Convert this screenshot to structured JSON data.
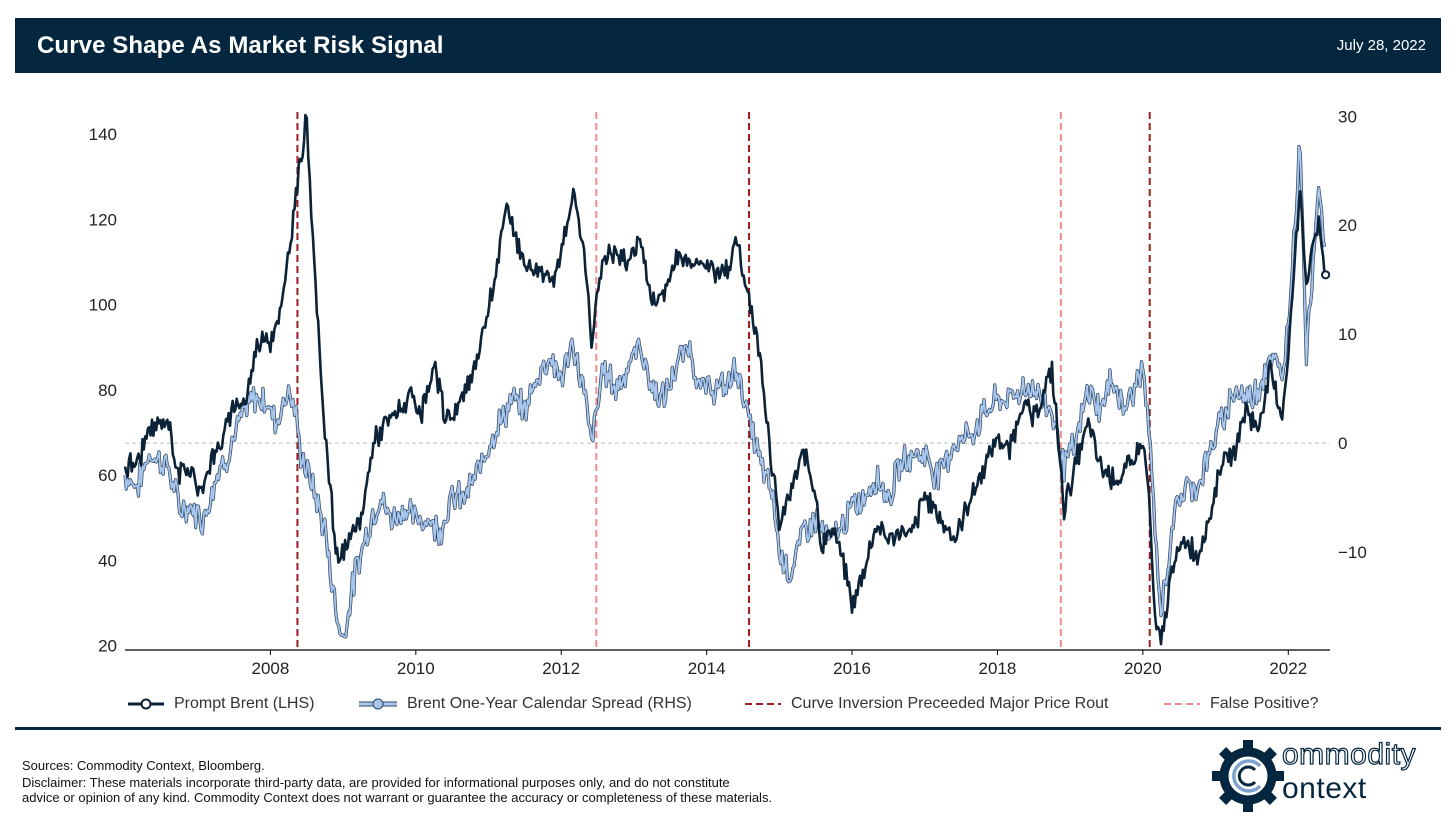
{
  "header": {
    "title": "Curve Shape As Market Risk Signal",
    "date": "July 28, 2022"
  },
  "colors": {
    "header_bg": "#04273f",
    "brent": "#0c2237",
    "spread_fill": "#a9c6ec",
    "spread_edge": "#2b4461",
    "inversion_line": "#a01c1c",
    "false_positive_line": "#f08c8c",
    "zero_line": "#bdbdbd"
  },
  "chart_data": {
    "type": "line",
    "x_range": [
      "2006-01-01",
      "2022-07-28"
    ],
    "x_ticks": [
      "2008",
      "2010",
      "2012",
      "2014",
      "2016",
      "2018",
      "2020",
      "2022"
    ],
    "y_left": {
      "range": [
        19,
        148
      ],
      "ticks": [
        "20",
        "40",
        "60",
        "80",
        "100",
        "120",
        "140"
      ]
    },
    "y_right": {
      "range": [
        -19,
        31.5
      ],
      "ticks": [
        "−10",
        "0",
        "10",
        "20",
        "30"
      ]
    },
    "zero_reference_line_rhs": 0,
    "series": [
      {
        "name": "Prompt Brent (LHS)",
        "axis": "left",
        "points": [
          [
            "2006-01",
            62
          ],
          [
            "2006-03",
            63
          ],
          [
            "2006-05",
            70
          ],
          [
            "2006-08",
            73
          ],
          [
            "2006-10",
            60
          ],
          [
            "2006-12",
            62
          ],
          [
            "2007-01",
            55
          ],
          [
            "2007-03",
            63
          ],
          [
            "2007-05",
            68
          ],
          [
            "2007-07",
            76
          ],
          [
            "2007-09",
            78
          ],
          [
            "2007-11",
            92
          ],
          [
            "2008-01",
            92
          ],
          [
            "2008-03",
            100
          ],
          [
            "2008-05",
            123
          ],
          [
            "2008-07",
            145
          ],
          [
            "2008-08",
            114
          ],
          [
            "2008-10",
            70
          ],
          [
            "2008-12",
            40
          ],
          [
            "2009-02",
            44
          ],
          [
            "2009-04",
            50
          ],
          [
            "2009-06",
            68
          ],
          [
            "2009-08",
            72
          ],
          [
            "2009-10",
            75
          ],
          [
            "2009-12",
            78
          ],
          [
            "2010-02",
            74
          ],
          [
            "2010-04",
            85
          ],
          [
            "2010-06",
            73
          ],
          [
            "2010-08",
            76
          ],
          [
            "2010-10",
            82
          ],
          [
            "2010-12",
            93
          ],
          [
            "2011-02",
            105
          ],
          [
            "2011-04",
            124
          ],
          [
            "2011-06",
            113
          ],
          [
            "2011-08",
            108
          ],
          [
            "2011-10",
            108
          ],
          [
            "2011-12",
            107
          ],
          [
            "2012-02",
            118
          ],
          [
            "2012-03",
            126
          ],
          [
            "2012-05",
            110
          ],
          [
            "2012-06",
            92
          ],
          [
            "2012-08",
            112
          ],
          [
            "2012-10",
            112
          ],
          [
            "2012-12",
            110
          ],
          [
            "2013-02",
            116
          ],
          [
            "2013-04",
            100
          ],
          [
            "2013-06",
            103
          ],
          [
            "2013-08",
            111
          ],
          [
            "2013-10",
            110
          ],
          [
            "2013-12",
            111
          ],
          [
            "2014-02",
            108
          ],
          [
            "2014-04",
            108
          ],
          [
            "2014-06",
            114
          ],
          [
            "2014-08",
            102
          ],
          [
            "2014-10",
            86
          ],
          [
            "2014-12",
            60
          ],
          [
            "2015-01",
            48
          ],
          [
            "2015-03",
            56
          ],
          [
            "2015-05",
            66
          ],
          [
            "2015-07",
            55
          ],
          [
            "2015-08",
            44
          ],
          [
            "2015-10",
            48
          ],
          [
            "2015-12",
            37
          ],
          [
            "2016-01",
            29
          ],
          [
            "2016-03",
            38
          ],
          [
            "2016-05",
            48
          ],
          [
            "2016-07",
            45
          ],
          [
            "2016-09",
            47
          ],
          [
            "2016-11",
            46
          ],
          [
            "2017-01",
            55
          ],
          [
            "2017-03",
            51
          ],
          [
            "2017-06",
            45
          ],
          [
            "2017-09",
            56
          ],
          [
            "2017-11",
            63
          ],
          [
            "2018-01",
            69
          ],
          [
            "2018-03",
            66
          ],
          [
            "2018-05",
            77
          ],
          [
            "2018-07",
            73
          ],
          [
            "2018-10",
            85
          ],
          [
            "2018-12",
            52
          ],
          [
            "2019-02",
            63
          ],
          [
            "2019-04",
            72
          ],
          [
            "2019-06",
            62
          ],
          [
            "2019-08",
            59
          ],
          [
            "2019-10",
            60
          ],
          [
            "2020-01",
            68
          ],
          [
            "2020-02",
            55
          ],
          [
            "2020-03",
            26
          ],
          [
            "2020-04",
            20
          ],
          [
            "2020-06",
            40
          ],
          [
            "2020-08",
            45
          ],
          [
            "2020-10",
            41
          ],
          [
            "2020-12",
            50
          ],
          [
            "2021-02",
            63
          ],
          [
            "2021-04",
            65
          ],
          [
            "2021-06",
            75
          ],
          [
            "2021-08",
            71
          ],
          [
            "2021-10",
            84
          ],
          [
            "2021-12",
            74
          ],
          [
            "2022-01",
            88
          ],
          [
            "2022-03",
            128
          ],
          [
            "2022-04",
            105
          ],
          [
            "2022-06",
            120
          ],
          [
            "2022-07",
            107
          ]
        ]
      },
      {
        "name": "Brent One-Year Calendar Spread (RHS)",
        "axis": "right",
        "points": [
          [
            "2006-01",
            -3
          ],
          [
            "2006-03",
            -4
          ],
          [
            "2006-05",
            -1
          ],
          [
            "2006-08",
            -2
          ],
          [
            "2006-10",
            -6
          ],
          [
            "2006-12",
            -6
          ],
          [
            "2007-02",
            -7
          ],
          [
            "2007-04",
            -3
          ],
          [
            "2007-06",
            -1
          ],
          [
            "2007-08",
            2
          ],
          [
            "2007-10",
            4
          ],
          [
            "2007-12",
            4
          ],
          [
            "2008-02",
            2
          ],
          [
            "2008-04",
            5
          ],
          [
            "2008-05",
            3
          ],
          [
            "2008-06",
            -1
          ],
          [
            "2008-08",
            -4
          ],
          [
            "2008-10",
            -8
          ],
          [
            "2008-12",
            -16
          ],
          [
            "2009-01",
            -18
          ],
          [
            "2009-03",
            -12
          ],
          [
            "2009-05",
            -8
          ],
          [
            "2009-07",
            -5
          ],
          [
            "2009-09",
            -7
          ],
          [
            "2009-11",
            -6
          ],
          [
            "2010-01",
            -7
          ],
          [
            "2010-03",
            -7
          ],
          [
            "2010-05",
            -8
          ],
          [
            "2010-07",
            -5
          ],
          [
            "2010-09",
            -5
          ],
          [
            "2010-11",
            -3
          ],
          [
            "2011-01",
            0
          ],
          [
            "2011-03",
            2
          ],
          [
            "2011-05",
            4
          ],
          [
            "2011-07",
            3
          ],
          [
            "2011-09",
            6
          ],
          [
            "2011-11",
            8
          ],
          [
            "2012-01",
            6
          ],
          [
            "2012-03",
            9
          ],
          [
            "2012-05",
            4
          ],
          [
            "2012-06",
            0
          ],
          [
            "2012-08",
            7
          ],
          [
            "2012-10",
            5
          ],
          [
            "2012-12",
            7
          ],
          [
            "2013-02",
            9
          ],
          [
            "2013-04",
            5
          ],
          [
            "2013-06",
            4
          ],
          [
            "2013-08",
            7
          ],
          [
            "2013-10",
            9
          ],
          [
            "2013-12",
            5
          ],
          [
            "2014-02",
            5
          ],
          [
            "2014-04",
            5
          ],
          [
            "2014-06",
            7
          ],
          [
            "2014-08",
            2
          ],
          [
            "2014-10",
            -2
          ],
          [
            "2014-12",
            -5
          ],
          [
            "2015-01",
            -10
          ],
          [
            "2015-03",
            -12
          ],
          [
            "2015-05",
            -8
          ],
          [
            "2015-07",
            -7
          ],
          [
            "2015-09",
            -9
          ],
          [
            "2015-11",
            -8
          ],
          [
            "2016-01",
            -6
          ],
          [
            "2016-03",
            -5
          ],
          [
            "2016-05",
            -3
          ],
          [
            "2016-07",
            -5
          ],
          [
            "2016-09",
            -2
          ],
          [
            "2016-11",
            -1
          ],
          [
            "2017-01",
            -1
          ],
          [
            "2017-03",
            -3
          ],
          [
            "2017-06",
            0
          ],
          [
            "2017-09",
            1
          ],
          [
            "2017-11",
            3
          ],
          [
            "2018-01",
            4
          ],
          [
            "2018-03",
            4
          ],
          [
            "2018-05",
            5
          ],
          [
            "2018-07",
            5
          ],
          [
            "2018-10",
            3
          ],
          [
            "2018-12",
            -2
          ],
          [
            "2019-02",
            0
          ],
          [
            "2019-04",
            5
          ],
          [
            "2019-06",
            3
          ],
          [
            "2019-08",
            6
          ],
          [
            "2019-10",
            3
          ],
          [
            "2020-01",
            7
          ],
          [
            "2020-02",
            1
          ],
          [
            "2020-03",
            -8
          ],
          [
            "2020-04",
            -16
          ],
          [
            "2020-06",
            -7
          ],
          [
            "2020-08",
            -4
          ],
          [
            "2020-10",
            -4
          ],
          [
            "2020-12",
            -1
          ],
          [
            "2021-02",
            2
          ],
          [
            "2021-04",
            5
          ],
          [
            "2021-06",
            4
          ],
          [
            "2021-08",
            5
          ],
          [
            "2021-10",
            8
          ],
          [
            "2021-12",
            6
          ],
          [
            "2022-01",
            11
          ],
          [
            "2022-03",
            28
          ],
          [
            "2022-04",
            8
          ],
          [
            "2022-06",
            24
          ],
          [
            "2022-07",
            18
          ]
        ]
      }
    ],
    "vertical_markers": [
      {
        "date": "2008-05-15",
        "kind": "inversion"
      },
      {
        "date": "2012-06-25",
        "kind": "false_positive"
      },
      {
        "date": "2014-08-01",
        "kind": "inversion"
      },
      {
        "date": "2018-11-15",
        "kind": "false_positive"
      },
      {
        "date": "2020-02-05",
        "kind": "inversion"
      }
    ],
    "legend": [
      {
        "label": "Prompt Brent (LHS)",
        "style": "brent"
      },
      {
        "label": "Brent One-Year Calendar Spread (RHS)",
        "style": "spread"
      },
      {
        "label": "Curve Inversion Preceeded Major Price Rout",
        "style": "inversion"
      },
      {
        "label": "False Positive?",
        "style": "false_positive"
      }
    ],
    "legend_position": "bottom"
  },
  "footer": {
    "sources": "Sources: Commodity Context, Bloomberg.",
    "disclaimer": "Disclaimer: These materials incorporate third-party data, are provided for informational purposes only, and do not constitute\nadvice or opinion of any kind. Commodity Context does not warrant or guarantee the accuracy or completeness of these materials."
  },
  "logo": {
    "word1": "ommodity",
    "word2": "ontext"
  }
}
